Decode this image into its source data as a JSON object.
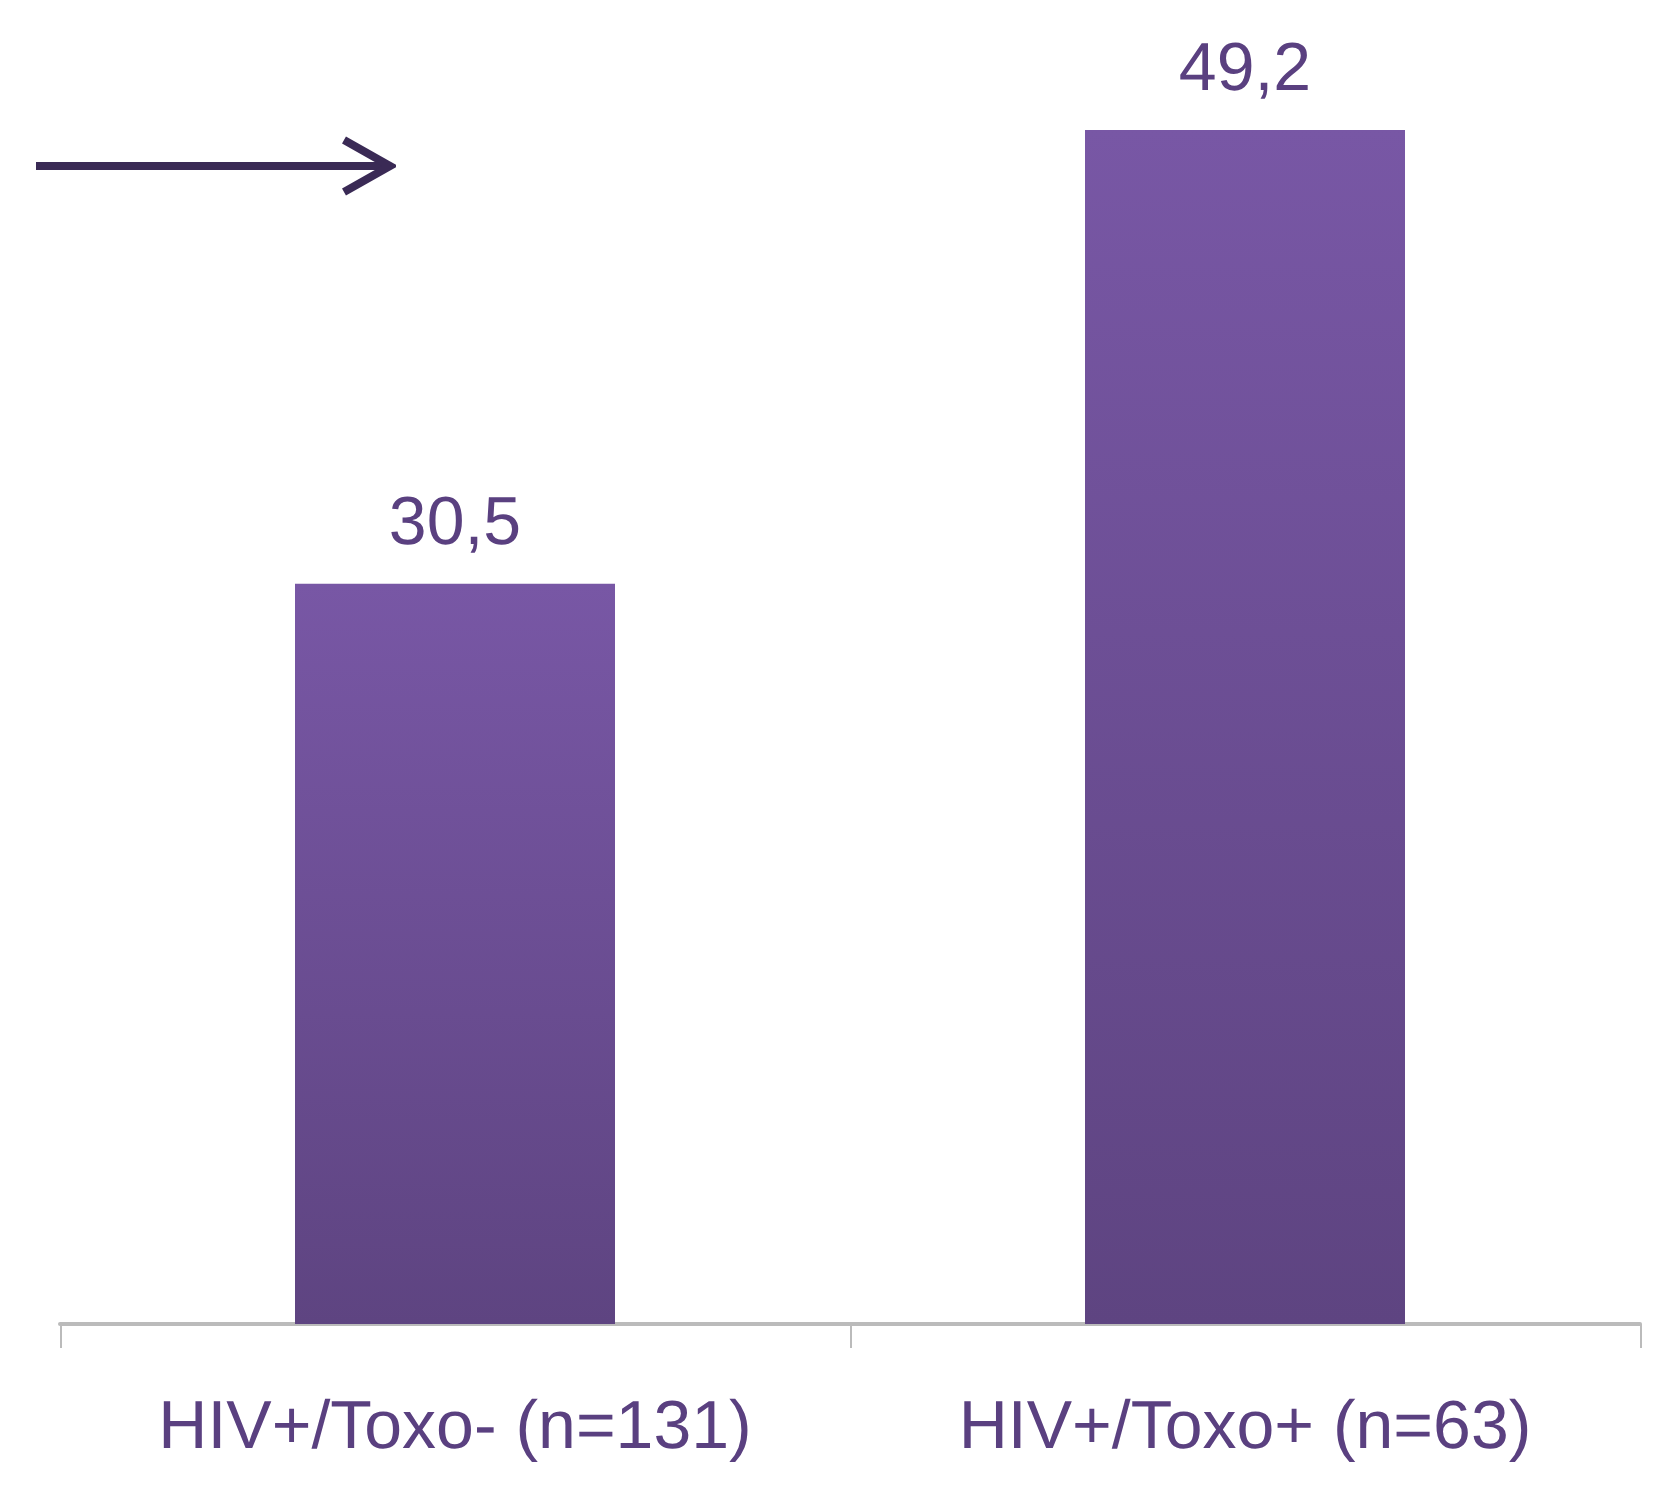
{
  "chart_data": {
    "type": "bar",
    "categories": [
      "HIV+/Toxo- (n=131)",
      "HIV+/Toxo+ (n=63)"
    ],
    "values": [
      30.5,
      49.2
    ],
    "value_labels": [
      "30,5",
      "49,2"
    ],
    "color": "#7857a5"
  }
}
